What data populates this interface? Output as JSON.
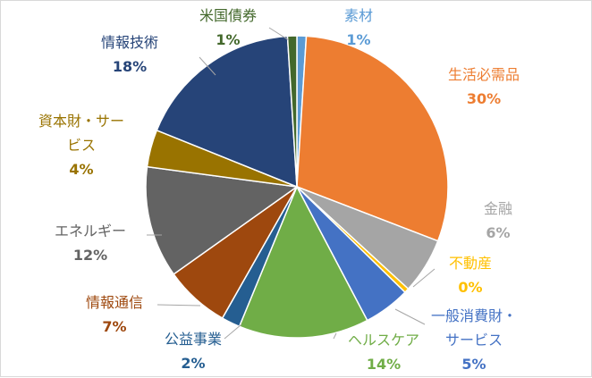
{
  "chart_data": {
    "type": "pie",
    "title": "",
    "slices": [
      {
        "name": "素材",
        "value": 1,
        "label": "1%",
        "color": "#5B9BD5"
      },
      {
        "name": "生活必需品",
        "value": 30,
        "label": "30%",
        "color": "#ED7D31"
      },
      {
        "name": "金融",
        "value": 6,
        "label": "6%",
        "color": "#A5A5A5"
      },
      {
        "name": "不動産",
        "value": 0.5,
        "label": "0%",
        "color": "#FFC000"
      },
      {
        "name": "一般消費財・サービス",
        "value": 5,
        "label": "5%",
        "color": "#4472C4"
      },
      {
        "name": "ヘルスケア",
        "value": 14,
        "label": "14%",
        "color": "#70AD47"
      },
      {
        "name": "公益事業",
        "value": 2,
        "label": "2%",
        "color": "#255E91"
      },
      {
        "name": "情報通信",
        "value": 7,
        "label": "7%",
        "color": "#9E480E"
      },
      {
        "name": "エネルギー",
        "value": 12,
        "label": "12%",
        "color": "#636363"
      },
      {
        "name": "資本財・サービス",
        "value": 4,
        "label": "4%",
        "color": "#997300"
      },
      {
        "name": "情報技術",
        "value": 18,
        "label": "18%",
        "color": "#264478"
      },
      {
        "name": "米国債券",
        "value": 1,
        "label": "1%",
        "color": "#43682B"
      }
    ],
    "label_lines": {
      "素材": [
        "素材"
      ],
      "生活必需品": [
        "生活必需品"
      ],
      "金融": [
        "金融"
      ],
      "不動産": [
        "不動産"
      ],
      "一般消費財・サービス": [
        "一般消費財・",
        "サービス"
      ],
      "ヘルスケア": [
        "ヘルスケア"
      ],
      "公益事業": [
        "公益事業"
      ],
      "情報通信": [
        "情報通信"
      ],
      "エネルギー": [
        "エネルギー"
      ],
      "資本財・サービス": [
        "資本財・サー",
        "ビス"
      ],
      "情報技術": [
        "情報技術"
      ],
      "米国債券": [
        "米国債券"
      ]
    },
    "legend": "none"
  }
}
